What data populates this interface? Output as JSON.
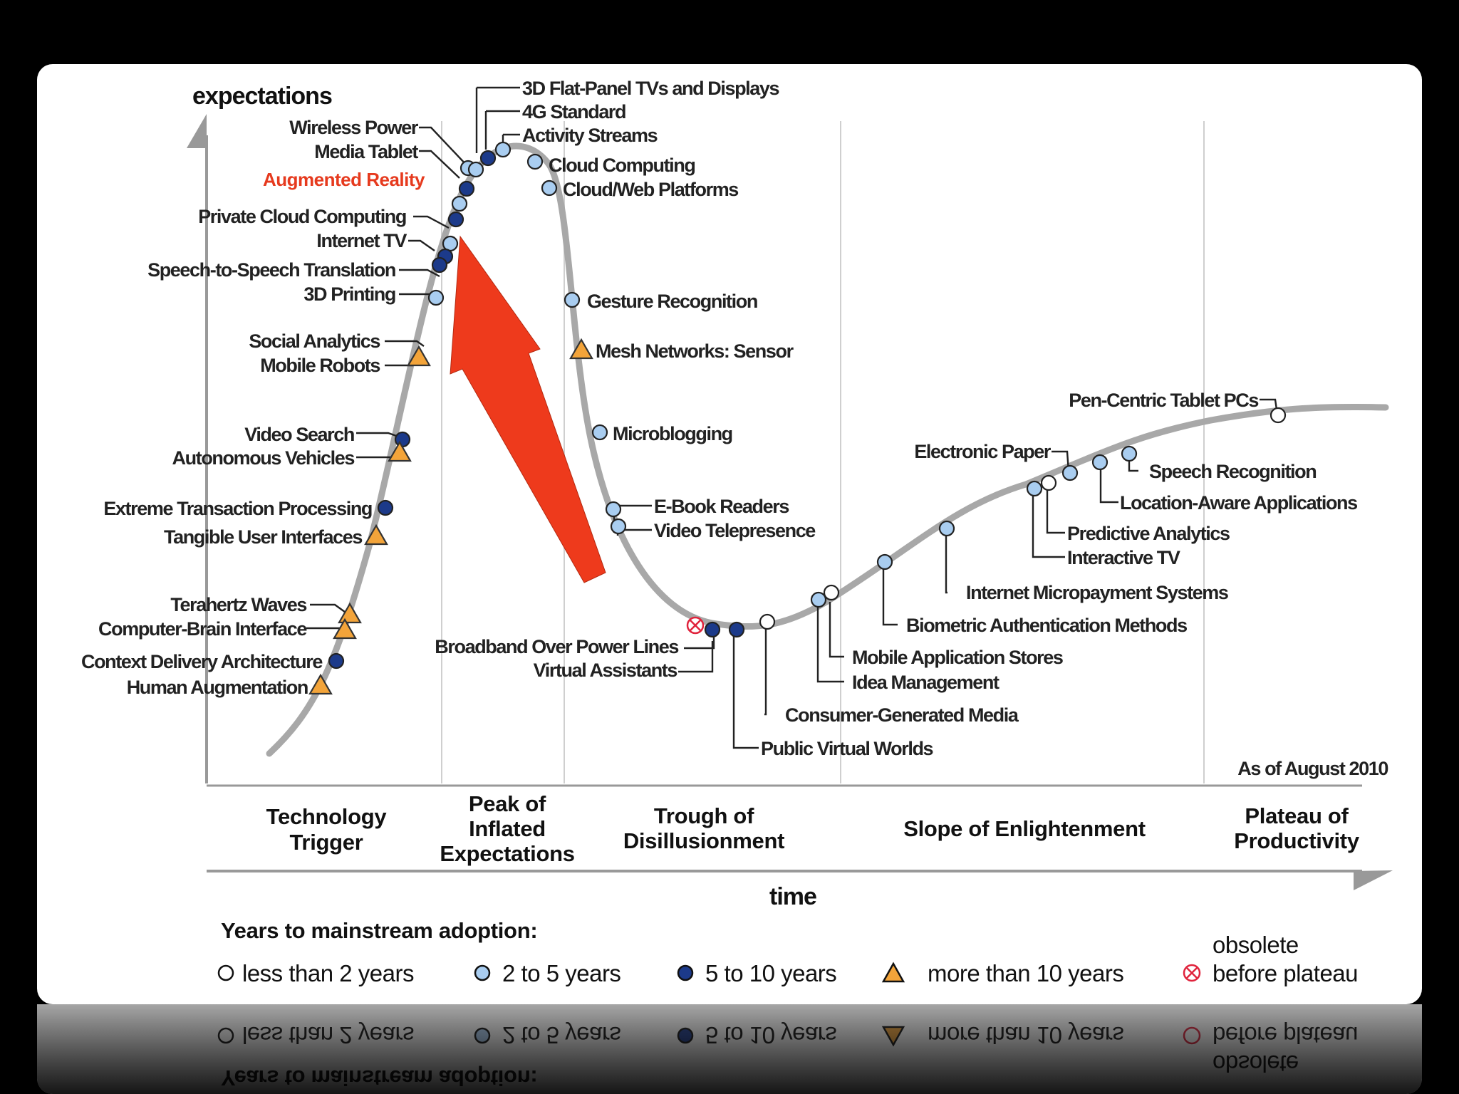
{
  "axes": {
    "y_label": "expectations",
    "x_label": "time"
  },
  "note": "As of August 2010",
  "phases": [
    {
      "lines": [
        "Technology",
        "Trigger"
      ]
    },
    {
      "lines": [
        "Peak of",
        "Inflated",
        "Expectations"
      ]
    },
    {
      "lines": [
        "Trough of",
        "Disillusionment"
      ]
    },
    {
      "lines": [
        "Slope of Enlightenment"
      ]
    },
    {
      "lines": [
        "Plateau of",
        "Productivity"
      ]
    }
  ],
  "highlight": {
    "label": "Augmented Reality",
    "color": "#e63a1e",
    "arrow_color": "#ee3a1c"
  },
  "legend": {
    "title": "Years to mainstream adoption:",
    "items": [
      {
        "key": "white",
        "label": "less than 2 years"
      },
      {
        "key": "light",
        "label": "2 to 5 years"
      },
      {
        "key": "dark",
        "label": "5 to 10 years"
      },
      {
        "key": "triangle",
        "label": "more than 10 years"
      },
      {
        "key": "obsolete",
        "label_lines": [
          "obsolete",
          "before plateau"
        ]
      }
    ]
  },
  "marker_colors": {
    "white": "#ffffff",
    "light": "#a9cdf0",
    "dark": "#1c3a8a",
    "triangle": "#f3a43a",
    "obsolete": "#e0233c"
  },
  "technologies": [
    {
      "label": "Wireless Power",
      "type": "light"
    },
    {
      "label": "Media Tablet",
      "type": "dark"
    },
    {
      "label": "Augmented Reality",
      "type": "light"
    },
    {
      "label": "Private Cloud Computing",
      "type": "dark"
    },
    {
      "label": "Internet TV",
      "type": "light"
    },
    {
      "label": "Speech-to-Speech Translation",
      "type": "dark"
    },
    {
      "label": "3D Printing",
      "type": "dark"
    },
    {
      "label": "Social Analytics",
      "type": "light"
    },
    {
      "label": "Mobile Robots",
      "type": "triangle"
    },
    {
      "label": "Video Search",
      "type": "dark"
    },
    {
      "label": "Autonomous Vehicles",
      "type": "triangle"
    },
    {
      "label": "Extreme Transaction Processing",
      "type": "dark"
    },
    {
      "label": "Tangible User Interfaces",
      "type": "triangle"
    },
    {
      "label": "Terahertz Waves",
      "type": "triangle"
    },
    {
      "label": "Computer-Brain Interface",
      "type": "triangle"
    },
    {
      "label": "Context Delivery Architecture",
      "type": "dark"
    },
    {
      "label": "Human Augmentation",
      "type": "triangle"
    },
    {
      "label": "3D Flat-Panel TVs and Displays",
      "type": "dark"
    },
    {
      "label": "4G Standard",
      "type": "light"
    },
    {
      "label": "Activity Streams",
      "type": "light"
    },
    {
      "label": "Cloud Computing",
      "type": "light"
    },
    {
      "label": "Cloud/Web Platforms",
      "type": "light"
    },
    {
      "label": "Gesture Recognition",
      "type": "light"
    },
    {
      "label": "Mesh Networks: Sensor",
      "type": "triangle"
    },
    {
      "label": "Microblogging",
      "type": "light"
    },
    {
      "label": "E-Book Readers",
      "type": "light"
    },
    {
      "label": "Video Telepresence",
      "type": "light"
    },
    {
      "label": "Broadband Over Power Lines",
      "type": "obsolete"
    },
    {
      "label": "Virtual Assistants",
      "type": "dark"
    },
    {
      "label": "Public Virtual Worlds",
      "type": "dark"
    },
    {
      "label": "Consumer-Generated Media",
      "type": "white"
    },
    {
      "label": "Mobile Application Stores",
      "type": "light"
    },
    {
      "label": "Idea Management",
      "type": "white"
    },
    {
      "label": "Biometric Authentication Methods",
      "type": "light"
    },
    {
      "label": "Internet Micropayment Systems",
      "type": "light"
    },
    {
      "label": "Interactive TV",
      "type": "light"
    },
    {
      "label": "Predictive Analytics",
      "type": "white"
    },
    {
      "label": "Electronic Paper",
      "type": "light"
    },
    {
      "label": "Location-Aware Applications",
      "type": "light"
    },
    {
      "label": "Speech Recognition",
      "type": "light"
    },
    {
      "label": "Pen-Centric Tablet PCs",
      "type": "white"
    }
  ]
}
